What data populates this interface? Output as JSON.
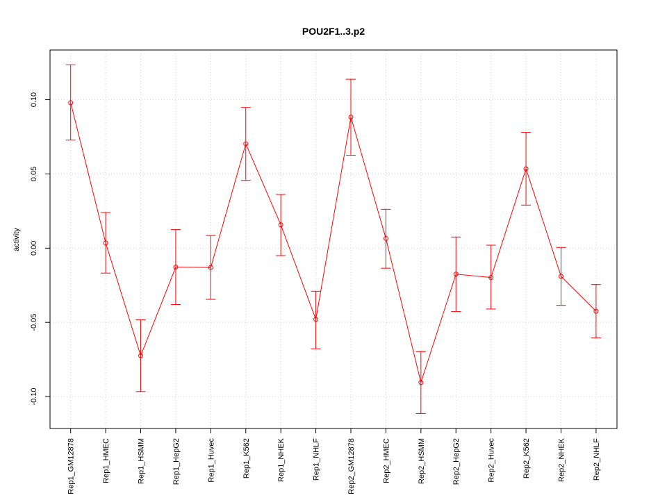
{
  "chart_data": {
    "type": "line",
    "title": "POU2F1..3.p2",
    "xlabel": "",
    "ylabel": "activity",
    "categories": [
      "Rep1_GM12878",
      "Rep1_HMEC",
      "Rep1_HSMM",
      "Rep1_HepG2",
      "Rep1_Huvec",
      "Rep1_K562",
      "Rep1_NHEK",
      "Rep1_NHLF",
      "Rep2_GM12878",
      "Rep2_HMEC",
      "Rep2_HSMM",
      "Rep2_HepG2",
      "Rep2_Huvec",
      "Rep2_K562",
      "Rep2_NHEK",
      "Rep2_NHLF"
    ],
    "values": [
      0.098,
      0.0035,
      -0.0725,
      -0.0128,
      -0.013,
      0.0703,
      0.0157,
      -0.048,
      0.0883,
      0.0065,
      -0.0905,
      -0.0175,
      -0.0198,
      0.0535,
      -0.019,
      -0.0425
    ],
    "lower": [
      0.0728,
      -0.0168,
      -0.0966,
      -0.038,
      -0.0345,
      0.0457,
      -0.005,
      -0.0678,
      0.0626,
      -0.0135,
      -0.1114,
      -0.0427,
      -0.041,
      0.029,
      -0.0385,
      -0.0605
    ],
    "upper": [
      0.1235,
      0.024,
      -0.0483,
      0.0125,
      0.0085,
      0.0948,
      0.0362,
      -0.029,
      0.1138,
      0.0262,
      -0.0697,
      0.0075,
      0.002,
      0.078,
      0.0005,
      -0.0245
    ],
    "yticks": [
      -0.1,
      -0.05,
      0.0,
      0.05,
      0.1
    ],
    "ytick_labels": [
      "-0.10",
      "-0.05",
      "0.00",
      "0.05",
      "0.10"
    ],
    "ylim": [
      -0.1215,
      0.1335
    ],
    "grid": true,
    "color": "#ff0000"
  }
}
